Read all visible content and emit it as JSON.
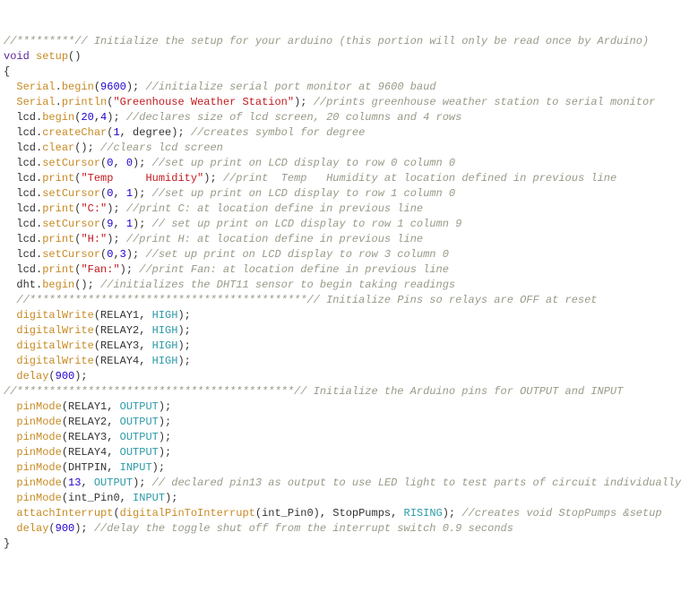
{
  "colors": {
    "comment": "#999988",
    "keyword": "#5c2699",
    "func": "#c78a24",
    "number": "#1c00cf",
    "string": "#c4191e",
    "const": "#2c9aa8",
    "default": "#333333"
  },
  "lines": [
    [
      {
        "c": "comment",
        "t": "//*********// Initialize the setup for your arduino (this portion will only be read once by Arduino)"
      }
    ],
    [
      {
        "c": "keyword",
        "t": "void"
      },
      {
        "c": "default",
        "t": " "
      },
      {
        "c": "func",
        "t": "setup"
      },
      {
        "c": "default",
        "t": "()"
      }
    ],
    [
      {
        "c": "default",
        "t": "{"
      }
    ],
    [
      {
        "c": "default",
        "t": "  "
      },
      {
        "c": "func",
        "t": "Serial"
      },
      {
        "c": "default",
        "t": "."
      },
      {
        "c": "func",
        "t": "begin"
      },
      {
        "c": "default",
        "t": "("
      },
      {
        "c": "number",
        "t": "9600"
      },
      {
        "c": "default",
        "t": "); "
      },
      {
        "c": "comment",
        "t": "//initialize serial port monitor at 9600 baud"
      }
    ],
    [
      {
        "c": "default",
        "t": "  "
      },
      {
        "c": "func",
        "t": "Serial"
      },
      {
        "c": "default",
        "t": "."
      },
      {
        "c": "func",
        "t": "println"
      },
      {
        "c": "default",
        "t": "("
      },
      {
        "c": "string",
        "t": "\"Greenhouse Weather Station\""
      },
      {
        "c": "default",
        "t": "); "
      },
      {
        "c": "comment",
        "t": "//prints greenhouse weather station to serial monitor"
      }
    ],
    [
      {
        "c": "default",
        "t": "  lcd."
      },
      {
        "c": "func",
        "t": "begin"
      },
      {
        "c": "default",
        "t": "("
      },
      {
        "c": "number",
        "t": "20"
      },
      {
        "c": "default",
        "t": ","
      },
      {
        "c": "number",
        "t": "4"
      },
      {
        "c": "default",
        "t": "); "
      },
      {
        "c": "comment",
        "t": "//declares size of lcd screen, 20 columns and 4 rows"
      }
    ],
    [
      {
        "c": "default",
        "t": "  lcd."
      },
      {
        "c": "func",
        "t": "createChar"
      },
      {
        "c": "default",
        "t": "("
      },
      {
        "c": "number",
        "t": "1"
      },
      {
        "c": "default",
        "t": ", degree); "
      },
      {
        "c": "comment",
        "t": "//creates symbol for degree"
      }
    ],
    [
      {
        "c": "default",
        "t": "  lcd."
      },
      {
        "c": "func",
        "t": "clear"
      },
      {
        "c": "default",
        "t": "(); "
      },
      {
        "c": "comment",
        "t": "//clears lcd screen"
      }
    ],
    [
      {
        "c": "default",
        "t": "  lcd."
      },
      {
        "c": "func",
        "t": "setCursor"
      },
      {
        "c": "default",
        "t": "("
      },
      {
        "c": "number",
        "t": "0"
      },
      {
        "c": "default",
        "t": ", "
      },
      {
        "c": "number",
        "t": "0"
      },
      {
        "c": "default",
        "t": "); "
      },
      {
        "c": "comment",
        "t": "//set up print on LCD display to row 0 column 0"
      }
    ],
    [
      {
        "c": "default",
        "t": "  lcd."
      },
      {
        "c": "func",
        "t": "print"
      },
      {
        "c": "default",
        "t": "("
      },
      {
        "c": "string",
        "t": "\"Temp     Humidity\""
      },
      {
        "c": "default",
        "t": "); "
      },
      {
        "c": "comment",
        "t": "//print  Temp   Humidity at location defined in previous line"
      }
    ],
    [
      {
        "c": "default",
        "t": "  lcd."
      },
      {
        "c": "func",
        "t": "setCursor"
      },
      {
        "c": "default",
        "t": "("
      },
      {
        "c": "number",
        "t": "0"
      },
      {
        "c": "default",
        "t": ", "
      },
      {
        "c": "number",
        "t": "1"
      },
      {
        "c": "default",
        "t": "); "
      },
      {
        "c": "comment",
        "t": "//set up print on LCD display to row 1 column 0"
      }
    ],
    [
      {
        "c": "default",
        "t": "  lcd."
      },
      {
        "c": "func",
        "t": "print"
      },
      {
        "c": "default",
        "t": "("
      },
      {
        "c": "string",
        "t": "\"C:\""
      },
      {
        "c": "default",
        "t": "); "
      },
      {
        "c": "comment",
        "t": "//print C: at location define in previous line"
      }
    ],
    [
      {
        "c": "default",
        "t": "  lcd."
      },
      {
        "c": "func",
        "t": "setCursor"
      },
      {
        "c": "default",
        "t": "("
      },
      {
        "c": "number",
        "t": "9"
      },
      {
        "c": "default",
        "t": ", "
      },
      {
        "c": "number",
        "t": "1"
      },
      {
        "c": "default",
        "t": "); "
      },
      {
        "c": "comment",
        "t": "// set up print on LCD display to row 1 column 9"
      }
    ],
    [
      {
        "c": "default",
        "t": "  lcd."
      },
      {
        "c": "func",
        "t": "print"
      },
      {
        "c": "default",
        "t": "("
      },
      {
        "c": "string",
        "t": "\"H:\""
      },
      {
        "c": "default",
        "t": "); "
      },
      {
        "c": "comment",
        "t": "//print H: at location define in previous line"
      }
    ],
    [
      {
        "c": "default",
        "t": "  lcd."
      },
      {
        "c": "func",
        "t": "setCursor"
      },
      {
        "c": "default",
        "t": "("
      },
      {
        "c": "number",
        "t": "0"
      },
      {
        "c": "default",
        "t": ","
      },
      {
        "c": "number",
        "t": "3"
      },
      {
        "c": "default",
        "t": "); "
      },
      {
        "c": "comment",
        "t": "//set up print on LCD display to row 3 column 0"
      }
    ],
    [
      {
        "c": "default",
        "t": "  lcd."
      },
      {
        "c": "func",
        "t": "print"
      },
      {
        "c": "default",
        "t": "("
      },
      {
        "c": "string",
        "t": "\"Fan:\""
      },
      {
        "c": "default",
        "t": "); "
      },
      {
        "c": "comment",
        "t": "//print Fan: at location define in previous line"
      }
    ],
    [
      {
        "c": "default",
        "t": "  dht."
      },
      {
        "c": "func",
        "t": "begin"
      },
      {
        "c": "default",
        "t": "(); "
      },
      {
        "c": "comment",
        "t": "//initializes the DHT11 sensor to begin taking readings"
      }
    ],
    [
      {
        "c": "default",
        "t": "  "
      },
      {
        "c": "comment",
        "t": "//*******************************************// Initialize Pins so relays are OFF at reset"
      }
    ],
    [
      {
        "c": "default",
        "t": "  "
      },
      {
        "c": "func",
        "t": "digitalWrite"
      },
      {
        "c": "default",
        "t": "(RELAY1, "
      },
      {
        "c": "const",
        "t": "HIGH"
      },
      {
        "c": "default",
        "t": ");"
      }
    ],
    [
      {
        "c": "default",
        "t": "  "
      },
      {
        "c": "func",
        "t": "digitalWrite"
      },
      {
        "c": "default",
        "t": "(RELAY2, "
      },
      {
        "c": "const",
        "t": "HIGH"
      },
      {
        "c": "default",
        "t": ");"
      }
    ],
    [
      {
        "c": "default",
        "t": "  "
      },
      {
        "c": "func",
        "t": "digitalWrite"
      },
      {
        "c": "default",
        "t": "(RELAY3, "
      },
      {
        "c": "const",
        "t": "HIGH"
      },
      {
        "c": "default",
        "t": ");"
      }
    ],
    [
      {
        "c": "default",
        "t": "  "
      },
      {
        "c": "func",
        "t": "digitalWrite"
      },
      {
        "c": "default",
        "t": "(RELAY4, "
      },
      {
        "c": "const",
        "t": "HIGH"
      },
      {
        "c": "default",
        "t": ");"
      }
    ],
    [
      {
        "c": "default",
        "t": "  "
      },
      {
        "c": "func",
        "t": "delay"
      },
      {
        "c": "default",
        "t": "("
      },
      {
        "c": "number",
        "t": "900"
      },
      {
        "c": "default",
        "t": ");"
      }
    ],
    [
      {
        "c": "comment",
        "t": "//*******************************************// Initialize the Arduino pins for OUTPUT and INPUT"
      }
    ],
    [
      {
        "c": "default",
        "t": "  "
      },
      {
        "c": "func",
        "t": "pinMode"
      },
      {
        "c": "default",
        "t": "(RELAY1, "
      },
      {
        "c": "const",
        "t": "OUTPUT"
      },
      {
        "c": "default",
        "t": ");"
      }
    ],
    [
      {
        "c": "default",
        "t": "  "
      },
      {
        "c": "func",
        "t": "pinMode"
      },
      {
        "c": "default",
        "t": "(RELAY2, "
      },
      {
        "c": "const",
        "t": "OUTPUT"
      },
      {
        "c": "default",
        "t": ");"
      }
    ],
    [
      {
        "c": "default",
        "t": "  "
      },
      {
        "c": "func",
        "t": "pinMode"
      },
      {
        "c": "default",
        "t": "(RELAY3, "
      },
      {
        "c": "const",
        "t": "OUTPUT"
      },
      {
        "c": "default",
        "t": ");"
      }
    ],
    [
      {
        "c": "default",
        "t": "  "
      },
      {
        "c": "func",
        "t": "pinMode"
      },
      {
        "c": "default",
        "t": "(RELAY4, "
      },
      {
        "c": "const",
        "t": "OUTPUT"
      },
      {
        "c": "default",
        "t": ");"
      }
    ],
    [
      {
        "c": "default",
        "t": "  "
      },
      {
        "c": "func",
        "t": "pinMode"
      },
      {
        "c": "default",
        "t": "(DHTPIN, "
      },
      {
        "c": "const",
        "t": "INPUT"
      },
      {
        "c": "default",
        "t": ");"
      }
    ],
    [
      {
        "c": "default",
        "t": "  "
      },
      {
        "c": "func",
        "t": "pinMode"
      },
      {
        "c": "default",
        "t": "("
      },
      {
        "c": "number",
        "t": "13"
      },
      {
        "c": "default",
        "t": ", "
      },
      {
        "c": "const",
        "t": "OUTPUT"
      },
      {
        "c": "default",
        "t": "); "
      },
      {
        "c": "comment",
        "t": "// declared pin13 as output to use LED light to test parts of circuit individually"
      }
    ],
    [
      {
        "c": "default",
        "t": "  "
      },
      {
        "c": "func",
        "t": "pinMode"
      },
      {
        "c": "default",
        "t": "(int_Pin0, "
      },
      {
        "c": "const",
        "t": "INPUT"
      },
      {
        "c": "default",
        "t": ");"
      }
    ],
    [
      {
        "c": "default",
        "t": "  "
      },
      {
        "c": "func",
        "t": "attachInterrupt"
      },
      {
        "c": "default",
        "t": "("
      },
      {
        "c": "func",
        "t": "digitalPinToInterrupt"
      },
      {
        "c": "default",
        "t": "(int_Pin0), StopPumps, "
      },
      {
        "c": "const",
        "t": "RISING"
      },
      {
        "c": "default",
        "t": "); "
      },
      {
        "c": "comment",
        "t": "//creates void StopPumps &setup"
      }
    ],
    [
      {
        "c": "default",
        "t": "  "
      },
      {
        "c": "func",
        "t": "delay"
      },
      {
        "c": "default",
        "t": "("
      },
      {
        "c": "number",
        "t": "900"
      },
      {
        "c": "default",
        "t": "); "
      },
      {
        "c": "comment",
        "t": "//delay the toggle shut off from the interrupt switch 0.9 seconds"
      }
    ],
    [
      {
        "c": "default",
        "t": "}"
      }
    ]
  ]
}
